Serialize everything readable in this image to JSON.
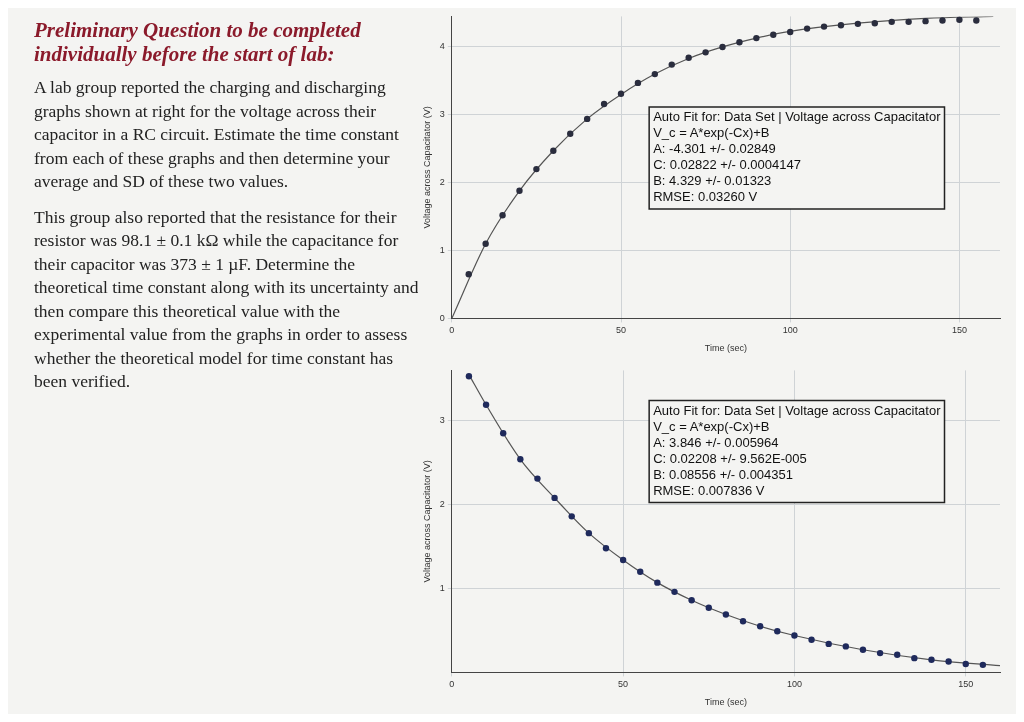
{
  "chart_data": [
    {
      "type": "other",
      "title": "Preliminary Question to be completed individually before the start of lab:",
      "annotations": [
        "A lab group reported the charging and discharging graphs shown at right for the voltage across their capacitor in a RC circuit. Estimate the time constant from each of these graphs and then determine your average and SD of these two values.",
        "This group also reported that the resistance for their resistor was 98.1 ± 0.1 kΩ while the capacitance for their capacitor was 373 ± 1 µF. Determine the theoretical time constant along with its uncertainty and then compare this theoretical value with the experimental value from the graphs in order to assess whether the theoretical model for time constant has been verified."
      ]
    },
    {
      "type": "scatter",
      "xlabel": "Time (sec)",
      "ylabel": "Voltage across Capacitator (V)",
      "xlim": [
        0,
        162
      ],
      "ylim": [
        0,
        4.45
      ],
      "xticks": [
        0,
        50,
        100,
        150
      ],
      "yticks": [
        0,
        1,
        2,
        3,
        4
      ],
      "grid": true,
      "series": [
        {
          "type": "scatter",
          "marker": "circle",
          "color": "#2a2d3e",
          "x": [
            5,
            10,
            15,
            20,
            25,
            30,
            35,
            40,
            45,
            50,
            55,
            60,
            65,
            70,
            75,
            80,
            85,
            90,
            95,
            100,
            105,
            110,
            115,
            120,
            125,
            130,
            135,
            140,
            145,
            150,
            155
          ],
          "values": [
            0.65,
            1.1,
            1.52,
            1.88,
            2.2,
            2.47,
            2.72,
            2.94,
            3.16,
            3.31,
            3.47,
            3.6,
            3.74,
            3.84,
            3.92,
            4.0,
            4.07,
            4.13,
            4.18,
            4.22,
            4.27,
            4.3,
            4.32,
            4.34,
            4.35,
            4.37,
            4.37,
            4.38,
            4.39,
            4.4,
            4.39
          ]
        },
        {
          "type": "line",
          "marker": "none",
          "color": "#555555",
          "x": [
            0,
            10,
            20,
            30,
            40,
            50,
            60,
            70,
            80,
            90,
            100,
            120,
            140,
            160
          ],
          "values": [
            0,
            1.1,
            1.88,
            2.47,
            2.94,
            3.3,
            3.6,
            3.83,
            4.0,
            4.13,
            4.23,
            4.35,
            4.42,
            4.45
          ]
        }
      ],
      "annotations": [
        "Auto Fit for: Data Set | Voltage across Capacitator",
        "V_c = A*exp(-Cx)+B",
        "A: -4.301 +/- 0.02849",
        "C: 0.02822 +/- 0.0004147",
        "B: 4.329 +/- 0.01323",
        "RMSE: 0.03260 V"
      ]
    },
    {
      "type": "scatter",
      "xlabel": "Time (sec)",
      "ylabel": "Voltage across Capacitator (V)",
      "xlim": [
        0,
        160
      ],
      "ylim": [
        0,
        3.6
      ],
      "xticks": [
        0,
        50,
        100,
        150
      ],
      "yticks": [
        1,
        2,
        3
      ],
      "grid": true,
      "series": [
        {
          "type": "scatter",
          "marker": "circle",
          "color": "#1f2a5c",
          "x": [
            5,
            10,
            15,
            20,
            25,
            30,
            35,
            40,
            45,
            50,
            55,
            60,
            65,
            70,
            75,
            80,
            85,
            90,
            95,
            100,
            105,
            110,
            115,
            120,
            125,
            130,
            135,
            140,
            145,
            150,
            155
          ],
          "values": [
            3.53,
            3.19,
            2.85,
            2.54,
            2.31,
            2.08,
            1.86,
            1.66,
            1.48,
            1.34,
            1.2,
            1.07,
            0.96,
            0.86,
            0.77,
            0.69,
            0.61,
            0.55,
            0.49,
            0.44,
            0.39,
            0.34,
            0.31,
            0.27,
            0.23,
            0.21,
            0.17,
            0.15,
            0.13,
            0.1,
            0.09
          ]
        },
        {
          "type": "line",
          "marker": "none",
          "color": "#555555",
          "x": [
            5,
            10,
            20,
            30,
            40,
            50,
            60,
            70,
            80,
            90,
            100,
            120,
            140,
            160
          ],
          "values": [
            3.55,
            3.19,
            2.54,
            2.08,
            1.66,
            1.34,
            1.07,
            0.86,
            0.69,
            0.55,
            0.44,
            0.27,
            0.15,
            0.08
          ]
        }
      ],
      "annotations": [
        "Auto Fit for: Data Set | Voltage across Capacitator",
        "V_c = A*exp(-Cx)+B",
        "A: 3.846 +/- 0.005964",
        "C: 0.02208 +/- 9.562E-005",
        "B: 0.08556 +/- 0.004351",
        "RMSE: 0.007836 V"
      ]
    }
  ]
}
